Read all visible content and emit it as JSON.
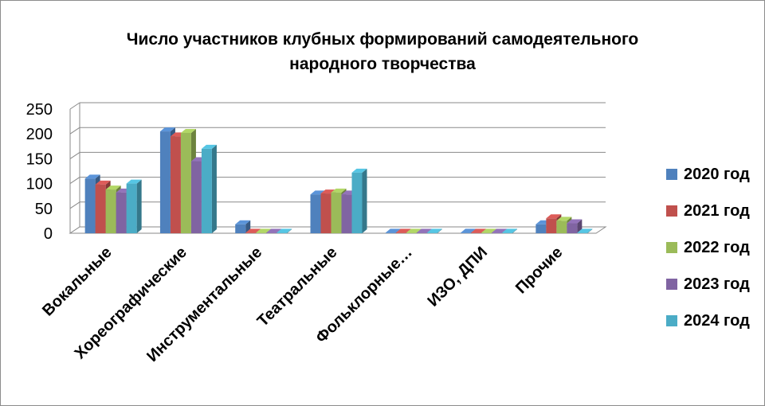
{
  "chart_data": {
    "type": "bar",
    "title_line1": "Число участников клубных формирований самодеятельного",
    "title_line2": "народного творчества",
    "categories": [
      "Вокальные",
      "Хореографические",
      "Инструментальные",
      "Театральные",
      "Фольклорные…",
      "ИЗО, ДПИ",
      "Прочие"
    ],
    "series": [
      {
        "name": "2020 год",
        "color": "#4f81bd",
        "values": [
          110,
          205,
          18,
          78,
          0,
          0,
          18
        ]
      },
      {
        "name": "2021 год",
        "color": "#c0504d",
        "values": [
          98,
          195,
          0,
          80,
          0,
          0,
          30
        ]
      },
      {
        "name": "2022 год",
        "color": "#9bbb59",
        "values": [
          88,
          202,
          0,
          82,
          0,
          0,
          25
        ]
      },
      {
        "name": "2023 год",
        "color": "#8064a2",
        "values": [
          82,
          145,
          0,
          78,
          0,
          0,
          20
        ]
      },
      {
        "name": "2024 год",
        "color": "#4bacc6",
        "values": [
          100,
          170,
          0,
          122,
          0,
          0,
          0
        ]
      }
    ],
    "yticks": [
      "0",
      "50",
      "100",
      "150",
      "200",
      "250"
    ],
    "ylim": [
      0,
      250
    ],
    "grid": true,
    "legend": "right",
    "style": "3d-clustered-column"
  }
}
